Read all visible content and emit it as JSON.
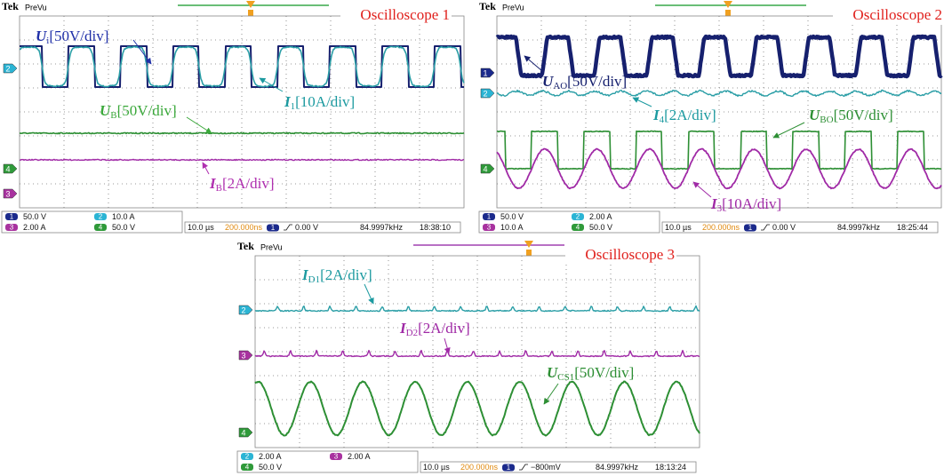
{
  "scopes": [
    {
      "brand": "Tek",
      "mode": "PreVu",
      "title": "Oscilloscope 1",
      "labels": [
        {
          "symbol": "U",
          "sub": "i",
          "scale": "[50V/div]"
        },
        {
          "symbol": "I",
          "sub": "1",
          "scale": "[10A/div]"
        },
        {
          "symbol": "U",
          "sub": "B",
          "scale": "[50V/div]"
        },
        {
          "symbol": "I",
          "sub": "B",
          "scale": "[2A/div]"
        }
      ],
      "markers": [
        "2",
        "4",
        "3"
      ],
      "channels": [
        {
          "id": "1",
          "setting": "50.0 V"
        },
        {
          "id": "3",
          "setting": "2.00 A"
        },
        {
          "id": "2",
          "setting": "10.0 A"
        },
        {
          "id": "4",
          "setting": "50.0 V"
        }
      ],
      "timebase": "10.0 µs",
      "sample": "200.000ns",
      "trigger_channel": "1",
      "trigger_level": "0.00 V",
      "frequency": "84.9997kHz",
      "clock": "18:38:10"
    },
    {
      "brand": "Tek",
      "mode": "PreVu",
      "title": "Oscilloscope 2",
      "labels": [
        {
          "symbol": "U",
          "sub": "AO",
          "scale": "[50V/div]"
        },
        {
          "symbol": "I",
          "sub": "4",
          "scale": "[2A/div]"
        },
        {
          "symbol": "U",
          "sub": "BO",
          "scale": "[50V/div]"
        },
        {
          "symbol": "I",
          "sub": "3",
          "scale": "[10A/div]"
        }
      ],
      "markers": [
        "1",
        "2",
        "4"
      ],
      "channels": [
        {
          "id": "1",
          "setting": "50.0 V"
        },
        {
          "id": "3",
          "setting": "10.0 A"
        },
        {
          "id": "2",
          "setting": "2.00 A"
        },
        {
          "id": "4",
          "setting": "50.0 V"
        }
      ],
      "timebase": "10.0 µs",
      "sample": "200.000ns",
      "trigger_channel": "1",
      "trigger_level": "0.00 V",
      "frequency": "84.9997kHz",
      "clock": "18:25:44"
    },
    {
      "brand": "Tek",
      "mode": "PreVu",
      "title": "Oscilloscope 3",
      "labels": [
        {
          "symbol": "I",
          "sub": "D1",
          "scale": "[2A/div]"
        },
        {
          "symbol": "I",
          "sub": "D2",
          "scale": "[2A/div]"
        },
        {
          "symbol": "U",
          "sub": "CS1",
          "scale": "[50V/div]"
        }
      ],
      "markers": [
        "2",
        "3",
        "4"
      ],
      "channels": [
        {
          "id": "2",
          "setting": "2.00 A"
        },
        {
          "id": "4",
          "setting": "50.0 V"
        },
        {
          "id": "3",
          "setting": "2.00 A"
        }
      ],
      "timebase": "10.0 µs",
      "sample": "200.000ns",
      "trigger_channel": "1",
      "trigger_level": "−800mV",
      "frequency": "84.9997kHz",
      "clock": "18:13:24"
    }
  ]
}
